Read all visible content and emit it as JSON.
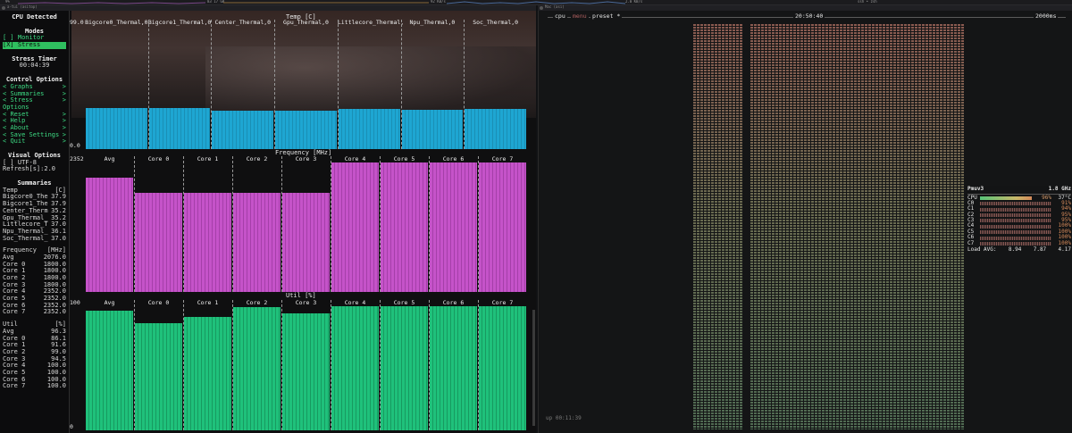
{
  "menubar": {
    "items": [
      "9%",
      "83 17 GB",
      "92 KB/s",
      "2.0 KB/s",
      "ssh • zsh"
    ]
  },
  "windows": {
    "left_title": "a-tui (asitop)",
    "right_title": "Mac (asi)"
  },
  "sidebar": {
    "cpu_detected": "CPU Detected",
    "modes_title": "Modes",
    "modes": [
      {
        "mark": "[ ]",
        "label": "Monitor",
        "selected": false
      },
      {
        "mark": "[X]",
        "label": "Stress",
        "selected": true
      }
    ],
    "stress_timer_title": "Stress Timer",
    "stress_timer": "00:04:39",
    "control_title": "Control Options",
    "controls": [
      "Graphs",
      "Summaries",
      "Stress Options",
      "Reset",
      "Help",
      "About",
      "Save Settings",
      "Quit"
    ],
    "visual_title": "Visual Options",
    "utf8": "[ ] UTF-8",
    "refresh": "Refresh[s]:2.0",
    "summaries_title": "Summaries",
    "temp_header": [
      "Temp",
      "[C]"
    ],
    "temps": [
      [
        "Bigcore0_The",
        "37.9"
      ],
      [
        "Bigcore1_The",
        "37.9"
      ],
      [
        "Center_Therm",
        "35.2"
      ],
      [
        "Gpu_Thermal_",
        "35.2"
      ],
      [
        "Littlecore_T",
        "37.0"
      ],
      [
        "Npu_Thermal_",
        "36.1"
      ],
      [
        "Soc_Thermal_",
        "37.0"
      ]
    ],
    "freq_header": [
      "Frequency",
      "[MHz]"
    ],
    "freqs": [
      [
        "Avg",
        "2076.0"
      ],
      [
        "Core 0",
        "1800.0"
      ],
      [
        "Core 1",
        "1800.0"
      ],
      [
        "Core 2",
        "1800.0"
      ],
      [
        "Core 3",
        "1800.0"
      ],
      [
        "Core 4",
        "2352.0"
      ],
      [
        "Core 5",
        "2352.0"
      ],
      [
        "Core 6",
        "2352.0"
      ],
      [
        "Core 7",
        "2352.0"
      ]
    ],
    "util_header": [
      "Util",
      "[%]"
    ],
    "utils": [
      [
        "Avg",
        "96.3"
      ],
      [
        "Core 0",
        "86.1"
      ],
      [
        "Core 1",
        "91.6"
      ],
      [
        "Core 2",
        "99.0"
      ],
      [
        "Core 3",
        "94.5"
      ],
      [
        "Core 4",
        "100.0"
      ],
      [
        "Core 5",
        "100.0"
      ],
      [
        "Core 6",
        "100.0"
      ],
      [
        "Core 7",
        "100.0"
      ]
    ]
  },
  "chart_data": [
    {
      "type": "bar",
      "title": "Temp [C]",
      "y_max_label": "99.0",
      "y_min_label": "0.0",
      "ylim": [
        0,
        99
      ],
      "categories": [
        "Bigcore0_Thermal,0",
        "Bigcore1_Thermal,0",
        "Center_Thermal,0",
        "Gpu_Thermal,0",
        "Littlecore_Thermal,",
        "Npu_Thermal,0",
        "Soc_Thermal,0"
      ],
      "values": [
        37.9,
        37.9,
        35.2,
        35.2,
        37.0,
        36.1,
        37.0
      ],
      "color": "#1ea6d2"
    },
    {
      "type": "bar",
      "title": "Frequency [MHz]",
      "y_max_label": "2352",
      "ylim": [
        0,
        2352
      ],
      "categories": [
        "Avg",
        "Core 0",
        "Core 1",
        "Core 2",
        "Core 3",
        "Core 4",
        "Core 5",
        "Core 6",
        "Core 7"
      ],
      "values": [
        2076.0,
        1800.0,
        1800.0,
        1800.0,
        1800.0,
        2352.0,
        2352.0,
        2352.0,
        2352.0
      ],
      "color": "#c553c9"
    },
    {
      "type": "bar",
      "title": "Util [%]",
      "y_max_label": "100",
      "y_min_label": "0",
      "ylim": [
        0,
        100
      ],
      "categories": [
        "Avg",
        "Core 0",
        "Core 1",
        "Core 2",
        "Core 3",
        "Core 4",
        "Core 5",
        "Core 6",
        "Core 7"
      ],
      "values": [
        96.3,
        86.1,
        91.6,
        99.0,
        94.5,
        100.0,
        100.0,
        100.0,
        100.0
      ],
      "color": "#1fc17b"
    }
  ],
  "btop": {
    "cpu_label": "cpu",
    "menu_label": "menu",
    "preset_label": "preset *",
    "clock": "20:50:40",
    "interval": "2000ms",
    "uptime": "up 00:11:39",
    "pmu_title": "Pmuv3",
    "pmu_freq": "1.8 GHz",
    "cpu_row": {
      "label": "CPU",
      "pct": "96%",
      "temp": "37°C"
    },
    "cores": [
      {
        "label": "C0",
        "pct": "91%"
      },
      {
        "label": "C1",
        "pct": "94%"
      },
      {
        "label": "C2",
        "pct": "95%"
      },
      {
        "label": "C3",
        "pct": "95%"
      },
      {
        "label": "C4",
        "pct": "100%"
      },
      {
        "label": "C5",
        "pct": "100%"
      },
      {
        "label": "C6",
        "pct": "100%"
      },
      {
        "label": "C7",
        "pct": "100%"
      }
    ],
    "load_label": "Load AVG:",
    "load": [
      "8.94",
      "7.87",
      "4.17"
    ]
  }
}
